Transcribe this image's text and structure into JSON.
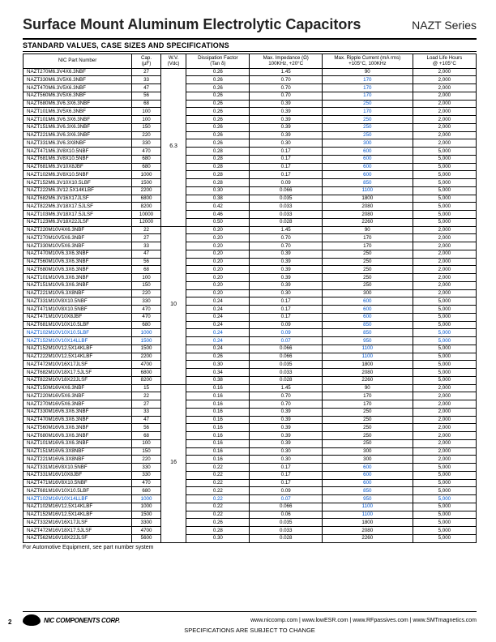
{
  "title": "Surface Mount Aluminum Electrolytic Capacitors",
  "series": "NAZT Series",
  "section_head": "STANDARD VALUES, CASE SIZES AND SPECIFICATIONS",
  "headers": [
    "NIC Part Number",
    "Cap.\n(µF)",
    "W.V.\n(Vdc)",
    "Dissipation Factor\n(Tan δ)",
    "Max. Impedance (Ω)\n100KHz, +20°C",
    "Max. Ripple Current (mA rms)\n+105°C, 100KHz",
    "Load Life Hours\n@ +105°C"
  ],
  "col_widths": [
    "120",
    "32",
    "28",
    "70",
    "80",
    "100",
    "70"
  ],
  "groups": [
    {
      "wv": "6.3",
      "rows": [
        [
          "NAZT270M6.3V4X6.3NBF",
          "27",
          "0.26",
          "1.45",
          "90",
          "2,000",
          false
        ],
        [
          "NAZT330M6.3V5X6.3NBF",
          "33",
          "0.26",
          "0.70",
          "170",
          "2,000",
          false,
          true
        ],
        [
          "NAZT470M6.3V5X6.3NBF",
          "47",
          "0.26",
          "0.70",
          "170",
          "2,000",
          false,
          true
        ],
        [
          "NAZT560M6.3V5X6.3NBF",
          "56",
          "0.26",
          "0.70",
          "170",
          "2,000",
          false,
          true
        ],
        [
          "NAZT680M6.3V6.3X6.3NBF",
          "68",
          "0.26",
          "0.39",
          "250",
          "2,000",
          false,
          true
        ],
        [
          "NAZT101M6.3V5X6.3NBF",
          "100",
          "0.26",
          "0.39",
          "170",
          "2,000",
          false,
          true
        ],
        [
          "NAZT101M6.3V6.3X6.3NBF",
          "100",
          "0.26",
          "0.39",
          "250",
          "2,000",
          false,
          true
        ],
        [
          "NAZT151M6.3V6.3X6.3NBF",
          "150",
          "0.26",
          "0.39",
          "250",
          "2,000",
          false,
          true
        ],
        [
          "NAZT221M6.3V6.3X6.3NBF",
          "220",
          "0.26",
          "0.39",
          "250",
          "2,000",
          false,
          true
        ],
        [
          "NAZT331M6.3V6.3X8NBF",
          "330",
          "0.26",
          "0.30",
          "300",
          "2,000",
          false,
          true
        ],
        [
          "NAZT471M6.3V8X10.5NBF",
          "470",
          "0.28",
          "0.17",
          "600",
          "5,000",
          false,
          true
        ],
        [
          "NAZT681M6.3V8X10.5NBF",
          "680",
          "0.28",
          "0.17",
          "600",
          "5,000",
          false,
          true
        ],
        [
          "NAZT681M6.3V10X8JBF",
          "680",
          "0.28",
          "0.17",
          "600",
          "5,000",
          false,
          true
        ],
        [
          "NAZT102M6.3V8X10.5NBF",
          "1000",
          "0.28",
          "0.17",
          "600",
          "5,000",
          false,
          true
        ],
        [
          "NAZT152M6.3V10X10.5LBF",
          "1500",
          "0.28",
          "0.09",
          "850",
          "5,000",
          false,
          true
        ],
        [
          "NAZT222M6.3V12.5X14KLBF",
          "2200",
          "0.30",
          "0.066",
          "1100",
          "5,000",
          false,
          true
        ],
        [
          "NAZT682M6.3V16X17JLSF",
          "6800",
          "0.38",
          "0.035",
          "1800",
          "5,000",
          false
        ],
        [
          "NAZT822M6.3V18X17.5JLSF",
          "8200",
          "0.42",
          "0.033",
          "2080",
          "5,000",
          false
        ],
        [
          "NAZT103M6.3V18X17.5JLSF",
          "10000",
          "0.46",
          "0.033",
          "2080",
          "5,000",
          false
        ],
        [
          "NAZT123M6.3V18X22JLSF",
          "12000",
          "0.50",
          "0.028",
          "2260",
          "5,000",
          false
        ]
      ]
    },
    {
      "wv": "10",
      "rows": [
        [
          "NAZT220M10V4X6.3NBF",
          "22",
          "0.20",
          "1.45",
          "90",
          "2,000",
          false
        ],
        [
          "NAZT270M10V5X6.3NBF",
          "27",
          "0.20",
          "0.70",
          "170",
          "2,000",
          false
        ],
        [
          "NAZT330M10V5X6.3NBF",
          "33",
          "0.20",
          "0.70",
          "170",
          "2,000",
          false
        ],
        [
          "NAZT470M10V6.3X6.3NBF",
          "47",
          "0.20",
          "0.39",
          "250",
          "2,000",
          false
        ],
        [
          "NAZT560M10V6.3X6.3NBF",
          "56",
          "0.20",
          "0.39",
          "250",
          "2,000",
          false
        ],
        [
          "NAZT680M10V6.3X6.3NBF",
          "68",
          "0.20",
          "0.39",
          "250",
          "2,000",
          false
        ],
        [
          "NAZT101M10V6.3X6.3NBF",
          "100",
          "0.20",
          "0.39",
          "250",
          "2,000",
          false
        ],
        [
          "NAZT151M10V6.3X6.3NBF",
          "150",
          "0.20",
          "0.39",
          "250",
          "2,000",
          false
        ],
        [
          "NAZT221M10V6.3X8NBF",
          "220",
          "0.20",
          "0.30",
          "300",
          "2,000",
          false
        ],
        [
          "NAZT331M10V8X10.5NBF",
          "330",
          "0.24",
          "0.17",
          "600",
          "5,000",
          false,
          true
        ],
        [
          "NAZT471M10V8X10.5NBF",
          "470",
          "0.24",
          "0.17",
          "600",
          "5,000",
          false,
          true
        ],
        [
          "NAZT471M10V10X8JBF",
          "470",
          "0.24",
          "0.17",
          "600",
          "5,000",
          false,
          true
        ],
        [
          "NAZT681M10V10X10.5LBF",
          "680",
          "0.24",
          "0.09",
          "850",
          "5,000",
          false,
          true
        ],
        [
          "NAZT102M10V10X10.5LBF",
          "1000",
          "0.24",
          "0.09",
          "850",
          "5,000",
          true,
          true
        ],
        [
          "NAZT152M10V10X14LLBF",
          "1500",
          "0.24",
          "0.07",
          "950",
          "5,000",
          true,
          true
        ],
        [
          "NAZT152M10V12.5X14KLBF",
          "1500",
          "0.24",
          "0.066",
          "1100",
          "5,000",
          false,
          true
        ],
        [
          "NAZT222M10V12.5X14KLBF",
          "2200",
          "0.26",
          "0.066",
          "1100",
          "5,000",
          false,
          true
        ],
        [
          "NAZT472M10V16X17JLSF",
          "4700",
          "0.30",
          "0.035",
          "1800",
          "5,000",
          false
        ],
        [
          "NAZT682M10V18X17.5JLSF",
          "6800",
          "0.34",
          "0.033",
          "2080",
          "5,000",
          false
        ],
        [
          "NAZT822M10V18X22JLSF",
          "8200",
          "0.38",
          "0.028",
          "2260",
          "5,000",
          false
        ]
      ]
    },
    {
      "wv": "16",
      "rows": [
        [
          "NAZT150M16V4X6.3NBF",
          "15",
          "0.16",
          "1.45",
          "90",
          "2,000",
          false
        ],
        [
          "NAZT220M16V5X6.3NBF",
          "22",
          "0.16",
          "0.70",
          "170",
          "2,000",
          false
        ],
        [
          "NAZT270M16V5X6.3NBF",
          "27",
          "0.16",
          "0.70",
          "170",
          "2,000",
          false
        ],
        [
          "NAZT330M16V6.3X6.3NBF",
          "33",
          "0.16",
          "0.39",
          "250",
          "2,000",
          false
        ],
        [
          "NAZT470M16V6.3X6.3NBF",
          "47",
          "0.16",
          "0.39",
          "250",
          "2,000",
          false
        ],
        [
          "NAZT560M16V6.3X6.3NBF",
          "56",
          "0.16",
          "0.39",
          "250",
          "2,000",
          false
        ],
        [
          "NAZT680M16V6.3X6.3NBF",
          "68",
          "0.16",
          "0.39",
          "250",
          "2,000",
          false
        ],
        [
          "NAZT101M16V6.3X6.3NBF",
          "100",
          "0.16",
          "0.39",
          "250",
          "2,000",
          false
        ],
        [
          "NAZT151M16V6.3X8NBF",
          "150",
          "0.16",
          "0.30",
          "300",
          "2,000",
          false
        ],
        [
          "NAZT221M16V6.3X8NBF",
          "220",
          "0.16",
          "0.30",
          "300",
          "2,000",
          false
        ],
        [
          "NAZT331M16V8X10.5NBF",
          "330",
          "0.22",
          "0.17",
          "600",
          "5,000",
          false,
          true
        ],
        [
          "NAZT331M16V10X8JBF",
          "330",
          "0.22",
          "0.17",
          "600",
          "5,000",
          false,
          true
        ],
        [
          "NAZT471M16V8X10.5NBF",
          "470",
          "0.22",
          "0.17",
          "600",
          "5,000",
          false,
          true
        ],
        [
          "NAZT681M16V10X10.5LBF",
          "680",
          "0.22",
          "0.09",
          "850",
          "5,000",
          false,
          true
        ],
        [
          "NAZT102M16V10X14LLBF",
          "1000",
          "0.22",
          "0.07",
          "950",
          "5,000",
          true,
          true
        ],
        [
          "NAZT102M16V12.5X14KLBF",
          "1000",
          "0.22",
          "0.066",
          "1100",
          "5,000",
          false,
          true
        ],
        [
          "NAZT152M16V12.5X14KLBF",
          "1500",
          "0.22",
          "0.06",
          "1100",
          "5,000",
          false,
          true
        ],
        [
          "NAZT332M16V16X17JLSF",
          "3300",
          "0.26",
          "0.035",
          "1800",
          "5,000",
          false
        ],
        [
          "NAZT472M16V18X17.5JLSF",
          "4700",
          "0.28",
          "0.033",
          "2080",
          "5,000",
          false
        ],
        [
          "NAZT562M16V18X22JLSF",
          "5600",
          "0.30",
          "0.028",
          "2260",
          "5,000",
          false
        ]
      ]
    }
  ],
  "footnote": "For Automotive Equipment, see part number system",
  "corp": "NIC COMPONENTS CORP.",
  "links": "www.niccomp.com  |  www.lowESR.com  |  www.RFpassives.com  |  www.SMTmagnetics.com",
  "spec_change": "SPECIFICATIONS ARE SUBJECT TO CHANGE",
  "page_num": "2"
}
